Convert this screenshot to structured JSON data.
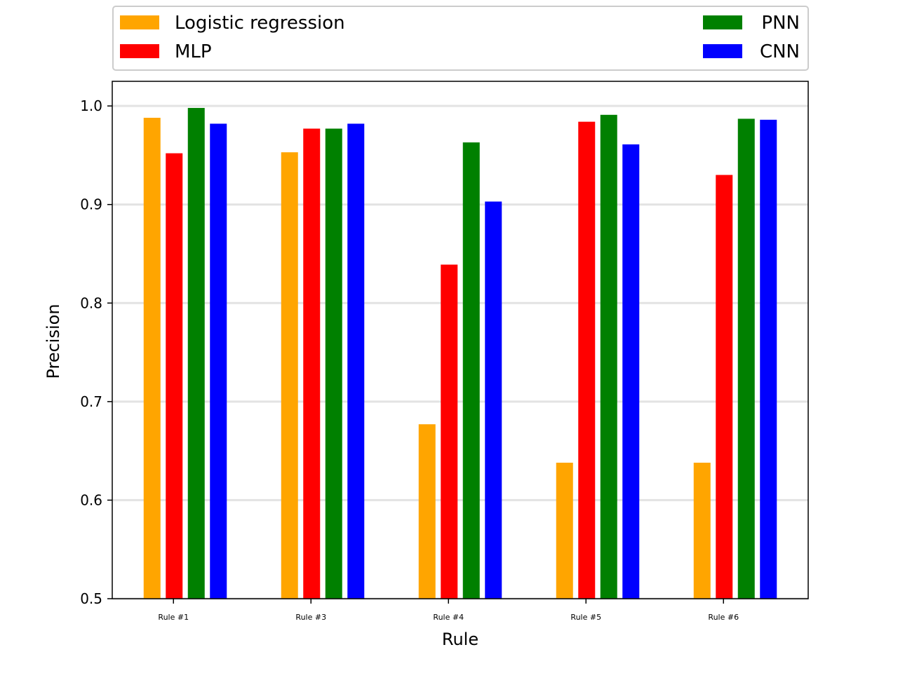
{
  "chart_data": {
    "type": "bar",
    "categories": [
      "Rule #1",
      "Rule #3",
      "Rule #4",
      "Rule #5",
      "Rule #6"
    ],
    "series": [
      {
        "name": "Logistic regression",
        "color": "#ffa500",
        "values": [
          0.988,
          0.953,
          0.677,
          0.638,
          0.638
        ]
      },
      {
        "name": "MLP",
        "color": "#ff0000",
        "values": [
          0.952,
          0.977,
          0.839,
          0.984,
          0.93
        ]
      },
      {
        "name": "PNN",
        "color": "#008000",
        "values": [
          0.998,
          0.977,
          0.963,
          0.991,
          0.987
        ]
      },
      {
        "name": "CNN",
        "color": "#0000ff",
        "values": [
          0.982,
          0.982,
          0.903,
          0.961,
          0.986
        ]
      }
    ],
    "xlabel": "Rule",
    "ylabel": "Precision",
    "ylim": [
      0.5,
      1.025
    ],
    "yticks": [
      0.5,
      0.6,
      0.7,
      0.8,
      0.9,
      1.0
    ],
    "ytick_labels": [
      "0.5",
      "0.6",
      "0.7",
      "0.8",
      "0.9",
      "1.0"
    ],
    "grid": "horizontal",
    "legend_position": "above-plot"
  }
}
